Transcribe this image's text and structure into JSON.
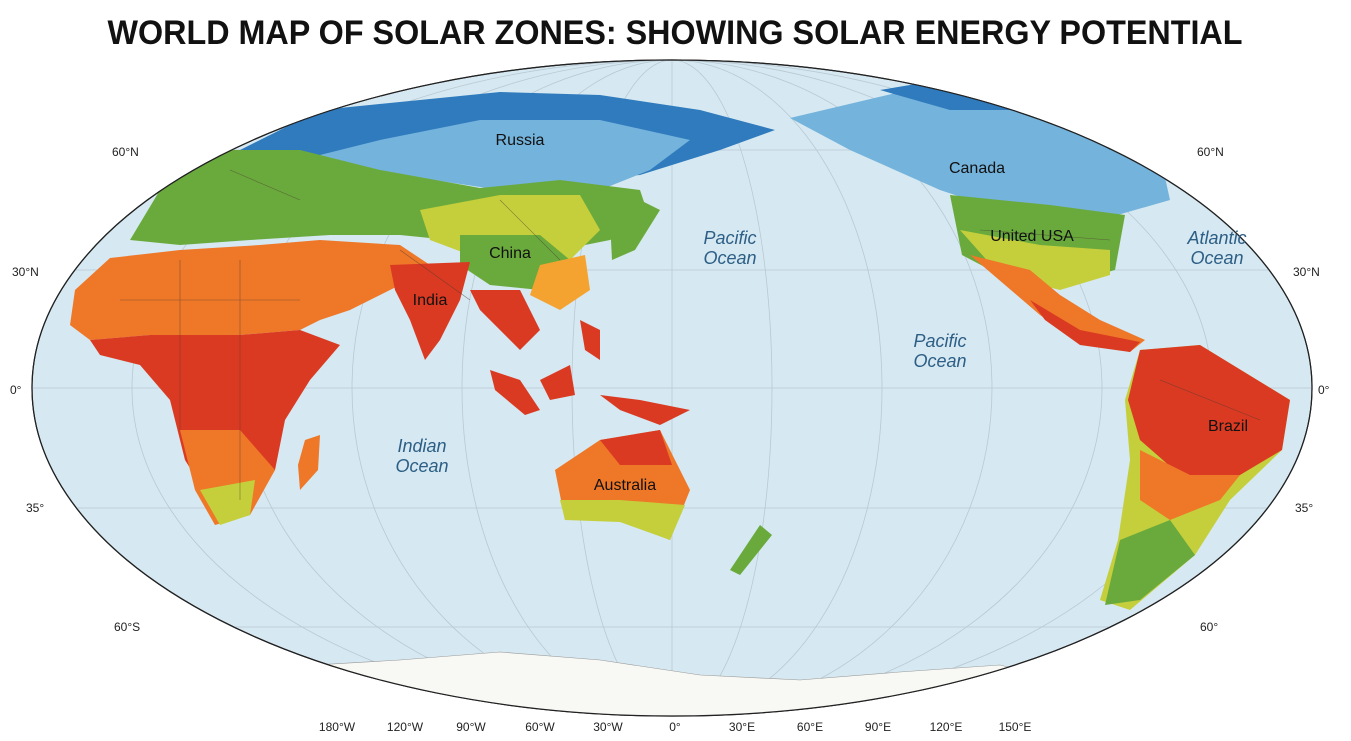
{
  "header": {
    "title": "WORLD MAP OF SOLAR ZONES: SHOWING SOLAR ENERGY POTENTIAL"
  },
  "map": {
    "regions": [
      "Russia",
      "Canada",
      "China",
      "United USA",
      "India",
      "Australia",
      "Brazil"
    ],
    "oceans": [
      [
        "Pacific",
        "Ocean"
      ],
      [
        "Pacific",
        "Ocean"
      ],
      [
        "Atlantic",
        "Ocean"
      ],
      [
        "Indian",
        "Ocean"
      ]
    ],
    "latitude_labels_left": [
      "60°N",
      "30°N",
      "0°",
      "35°",
      "60°S"
    ],
    "latitude_labels_right": [
      "60°N",
      "30°N",
      "0°",
      "35°",
      "60°"
    ],
    "longitude_labels": [
      "180°W",
      "120°W",
      "90°W",
      "60°W",
      "30°W",
      "0°",
      "30°E",
      "60°E",
      "90°E",
      "120°E",
      "150°E"
    ]
  }
}
